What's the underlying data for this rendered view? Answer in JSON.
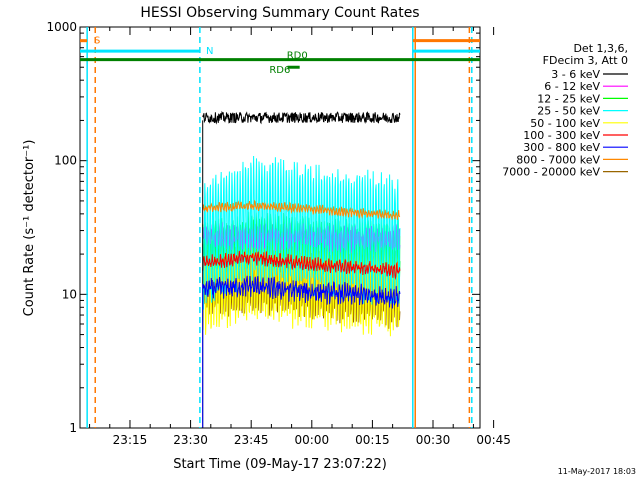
{
  "chart_data": {
    "type": "line",
    "title": "HESSI Observing Summary Count Rates",
    "xlabel": "Start Time (09-May-17 23:07:22)",
    "ylabel": "Count Rate (s⁻¹ detector⁻¹)",
    "y_scale": "log",
    "ylim": [
      1,
      1000
    ],
    "xlim_minutes": [
      -12.37,
      86.63
    ],
    "x_ticks": [
      {
        "label": "23:15",
        "minutes": 0
      },
      {
        "label": "23:30",
        "minutes": 15
      },
      {
        "label": "23:45",
        "minutes": 30
      },
      {
        "label": "00:00",
        "minutes": 45
      },
      {
        "label": "00:15",
        "minutes": 60
      },
      {
        "label": "00:30",
        "minutes": 75
      },
      {
        "label": "00:45",
        "minutes": 90
      }
    ],
    "y_ticks": [
      {
        "label": "1",
        "value": 1
      },
      {
        "label": "10",
        "value": 10
      },
      {
        "label": "100",
        "value": 100
      },
      {
        "label": "1000",
        "value": 1000
      }
    ],
    "legend_header": [
      "Det 1,3,6,",
      "FDecim 3, Att 0"
    ],
    "legend_position": "right",
    "data_start_minutes": 18,
    "data_end_minutes": 66.8,
    "series": [
      {
        "name": "3 - 6 keV",
        "color": "#000000",
        "level": [
          210,
          210,
          210,
          210,
          210
        ],
        "noise": 0.04,
        "osc": 0
      },
      {
        "name": "6 - 12 keV",
        "color": "#ff00ff",
        "level": [
          27,
          27,
          27,
          26,
          26
        ],
        "noise": 0.05,
        "osc": 0.06
      },
      {
        "name": "12 - 25 keV",
        "color": "#00ff00",
        "level": [
          22,
          25,
          24,
          23,
          22
        ],
        "noise": 0.05,
        "osc": 0.18
      },
      {
        "name": "25 - 50 keV",
        "color": "#00ffff",
        "level": [
          24,
          36,
          32,
          28,
          24
        ],
        "noise": 0.06,
        "osc": 0.45
      },
      {
        "name": "50 - 100 keV",
        "color": "#ffff00",
        "level": [
          12,
          15,
          14,
          13,
          12
        ],
        "noise": 0.06,
        "osc": 0.35
      },
      {
        "name": "100 - 300 keV",
        "color": "#ff0000",
        "level": [
          17,
          19,
          17,
          16,
          15
        ],
        "noise": 0.03,
        "osc": 0.03
      },
      {
        "name": "300 - 800 keV",
        "color": "#0000ff",
        "level": [
          11,
          11.5,
          10.5,
          10,
          9.5
        ],
        "noise": 0.05,
        "osc": 0.04
      },
      {
        "name": "800 - 7000 keV",
        "color": "#ff8800",
        "level": [
          44,
          46,
          44,
          41,
          39
        ],
        "noise": 0.02,
        "osc": 0.02
      },
      {
        "name": "7000 - 20000 keV",
        "color": "#996600",
        "level": [
          13,
          14,
          13,
          12,
          11
        ],
        "noise": 0.06,
        "osc": 0.25
      }
    ],
    "flags": [
      {
        "label": "S",
        "color": "#ff7700",
        "level": 790,
        "segments": [
          [
            -12.37,
            -10.6
          ],
          [
            70,
            86.63
          ]
        ]
      },
      {
        "label": "N",
        "color": "#00e5ff",
        "level": 660,
        "segments": [
          [
            -12.37,
            17.3
          ],
          [
            70,
            86.63
          ]
        ]
      },
      {
        "label": "RD0",
        "color": "#008000",
        "level": 570,
        "segments": [
          [
            -12.37,
            86.63
          ]
        ]
      },
      {
        "label": "RD6",
        "color": "#008000",
        "level": 500,
        "segments": [
          [
            39,
            42
          ]
        ]
      }
    ],
    "vertical_lines": [
      {
        "minutes": -10.6,
        "color": "#00e5ff",
        "style": "solid"
      },
      {
        "minutes": -8.6,
        "color": "#ff7700",
        "style": "dashed"
      },
      {
        "minutes": 17.3,
        "color": "#00e5ff",
        "style": "dashed"
      },
      {
        "minutes": 70,
        "color": "#00e5ff",
        "style": "solid"
      },
      {
        "minutes": 70.6,
        "color": "#ff7700",
        "style": "solid"
      },
      {
        "minutes": 84.6,
        "color": "#00e5ff",
        "style": "dashed"
      },
      {
        "minutes": 84.0,
        "color": "#ff7700",
        "style": "dashed"
      }
    ]
  },
  "footer_date": "11-May-2017 18:03"
}
